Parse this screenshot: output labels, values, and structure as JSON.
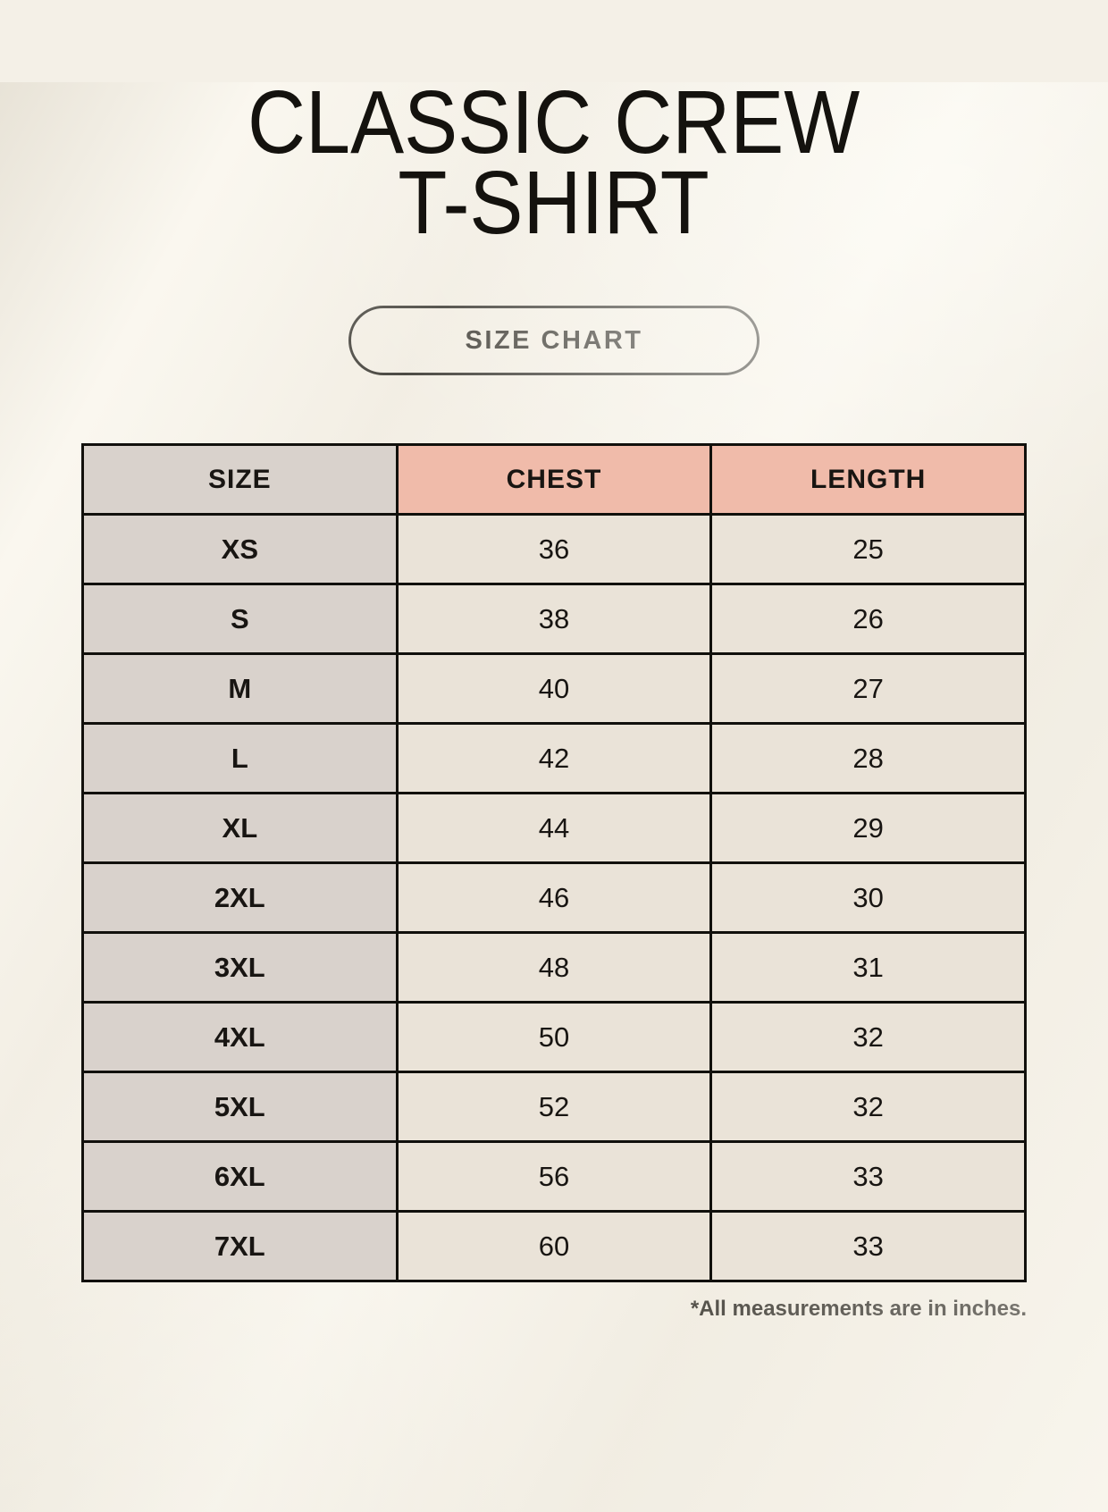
{
  "header": {
    "title_line1": "CLASSIC CREW",
    "title_line2": "T-SHIRT",
    "badge_label": "SIZE CHART"
  },
  "footer": {
    "note": "*All measurements are in inches."
  },
  "chart_data": {
    "type": "table",
    "title": "CLASSIC CREW T-SHIRT",
    "columns": [
      "SIZE",
      "CHEST",
      "LENGTH"
    ],
    "rows": [
      {
        "size": "XS",
        "chest": "36",
        "length": "25"
      },
      {
        "size": "S",
        "chest": "38",
        "length": "26"
      },
      {
        "size": "M",
        "chest": "40",
        "length": "27"
      },
      {
        "size": "L",
        "chest": "42",
        "length": "28"
      },
      {
        "size": "XL",
        "chest": "44",
        "length": "29"
      },
      {
        "size": "2XL",
        "chest": "46",
        "length": "30"
      },
      {
        "size": "3XL",
        "chest": "48",
        "length": "31"
      },
      {
        "size": "4XL",
        "chest": "50",
        "length": "32"
      },
      {
        "size": "5XL",
        "chest": "52",
        "length": "32"
      },
      {
        "size": "6XL",
        "chest": "56",
        "length": "33"
      },
      {
        "size": "7XL",
        "chest": "60",
        "length": "33"
      }
    ],
    "units": "inches"
  },
  "colors": {
    "page_background": "#f4f0e7",
    "size_column_bg": "#d9d2cc",
    "header_accent_bg": "#f0bbaa",
    "cell_bg": "#eae3d8",
    "table_border": "#11100c",
    "text": "#181512"
  }
}
